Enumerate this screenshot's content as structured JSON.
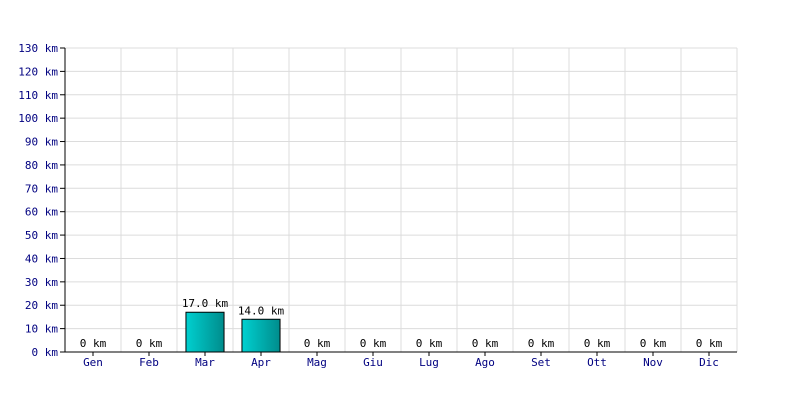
{
  "chart_data": {
    "type": "bar",
    "categories": [
      "Gen",
      "Feb",
      "Mar",
      "Apr",
      "Mag",
      "Giu",
      "Lug",
      "Ago",
      "Set",
      "Ott",
      "Nov",
      "Dic"
    ],
    "values": [
      0,
      0,
      17.0,
      14.0,
      0,
      0,
      0,
      0,
      0,
      0,
      0,
      0
    ],
    "data_labels": [
      "0 km",
      "0 km",
      "17.0 km",
      "14.0 km",
      "0 km",
      "0 km",
      "0 km",
      "0 km",
      "0 km",
      "0 km",
      "0 km",
      "0 km"
    ],
    "yticks": [
      "0 km",
      "10 km",
      "20 km",
      "30 km",
      "40 km",
      "50 km",
      "60 km",
      "70 km",
      "80 km",
      "90 km",
      "100 km",
      "110 km",
      "120 km",
      "130 km"
    ],
    "ylim": [
      0,
      130
    ],
    "ytick_step": 10,
    "unit": "km",
    "grid": true,
    "legend": "none",
    "colors": {
      "bar_light": "#00d0d0",
      "bar_dark": "#008c8c",
      "bar_stroke": "#000000",
      "grid": "#dcdcdc",
      "axis": "#000000",
      "tick_text": "#000080"
    }
  }
}
